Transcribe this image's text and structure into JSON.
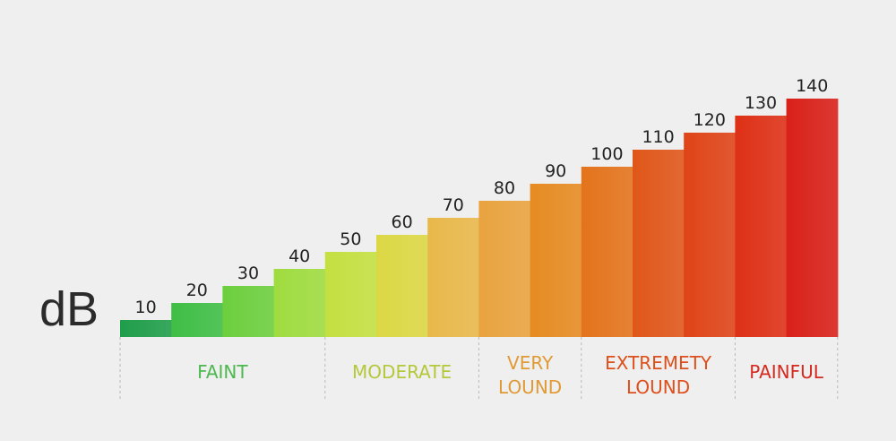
{
  "unit_label": "dB",
  "chart_data": {
    "type": "bar",
    "categories": [
      "10",
      "20",
      "30",
      "40",
      "50",
      "60",
      "70",
      "80",
      "90",
      "100",
      "110",
      "120",
      "130",
      "140"
    ],
    "values": [
      10,
      20,
      30,
      40,
      50,
      60,
      70,
      80,
      90,
      100,
      110,
      120,
      130,
      140
    ],
    "bar_colors": [
      "#1f9e4a",
      "#3fbe45",
      "#6ccf3d",
      "#9fdc3f",
      "#c4e040",
      "#dcd844",
      "#e9b84a",
      "#e9a33f",
      "#e68b22",
      "#e4731b",
      "#e05619",
      "#df4417",
      "#de3016",
      "#d92019"
    ],
    "ylim": [
      0,
      140
    ],
    "title": "",
    "xlabel": "",
    "ylabel": "dB",
    "bands": [
      {
        "label": "FAINT",
        "from": 0,
        "to": 3,
        "color": "#4db84f"
      },
      {
        "label": "MODERATE",
        "from": 4,
        "to": 6,
        "color": "#b5c83a"
      },
      {
        "label": "VERY\nLOUND",
        "from": 7,
        "to": 8,
        "color": "#e09a35"
      },
      {
        "label": "EXTREMETY\nLOUND",
        "from": 9,
        "to": 11,
        "color": "#dd4f1c"
      },
      {
        "label": "PAINFUL",
        "from": 12,
        "to": 13,
        "color": "#d42a1f"
      }
    ]
  }
}
